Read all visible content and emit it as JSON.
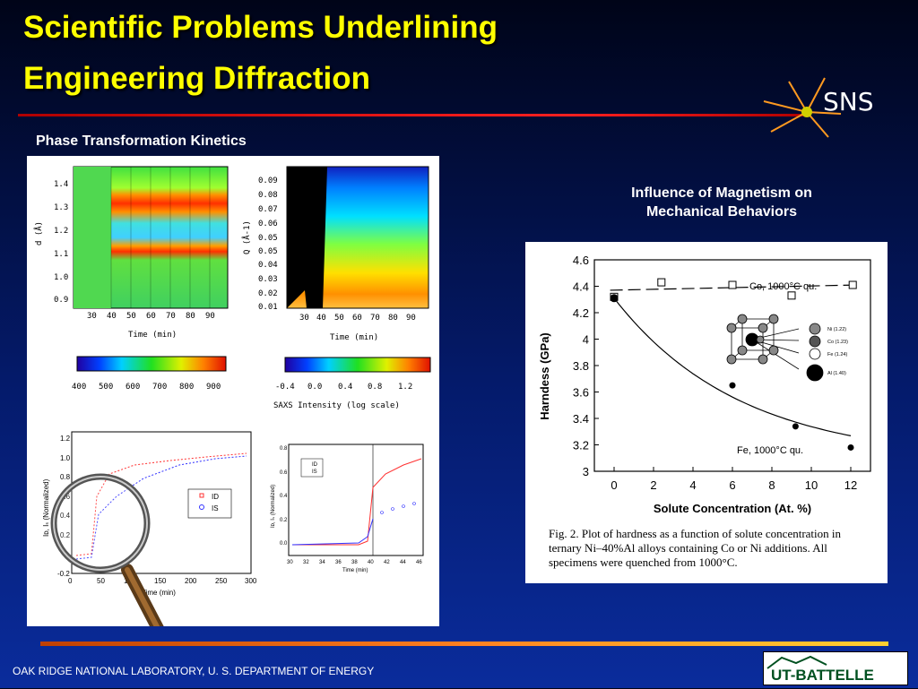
{
  "slide": {
    "title_line1": "Scientific Problems Underlining",
    "title_line2": "Engineering Diffraction",
    "logo_text": "SNS",
    "section_left": "Phase Transformation Kinetics",
    "section_right_line1": "Influence of Magnetism on",
    "section_right_line2": "Mechanical Behaviors",
    "footer": "OAK RIDGE NATIONAL LABORATORY, U. S. DEPARTMENT OF ENERGY",
    "ut_logo": "UT-BATTELLE"
  },
  "left_panel": {
    "diffraction": {
      "ylabel": "d (Å)",
      "xlabel": "Time (min)",
      "yticks": [
        "1.4",
        "1.3",
        "1.2",
        "1.1",
        "1.0",
        "0.9"
      ],
      "xticks": [
        "30",
        "40",
        "50",
        "60",
        "70",
        "80",
        "90"
      ],
      "colorbar_ticks": [
        "400",
        "500",
        "600",
        "700",
        "800",
        "900"
      ]
    },
    "saxs": {
      "ylabel": "Q (Å-1)",
      "xlabel": "Time (min)",
      "yticks": [
        "0.09",
        "0.08",
        "0.07",
        "0.06",
        "0.05",
        "0.05",
        "0.04",
        "0.03",
        "0.02",
        "0.01"
      ],
      "xticks": [
        "30",
        "40",
        "50",
        "60",
        "70",
        "80",
        "90"
      ],
      "colorbar_ticks": [
        "-0.4",
        "0.0",
        "0.4",
        "0.8",
        "1.2"
      ],
      "colorbar_label": "SAXS Intensity (log scale)"
    },
    "kinetics_left": {
      "ylabel": "Iᴅ, Iₛ (Normalized)",
      "xlabel": "Time (min)",
      "yticks": [
        "1.2",
        "1.0",
        "0.8",
        "0.6",
        "0.4",
        "0.2",
        "0",
        "-0.2"
      ],
      "xticks": [
        "0",
        "50",
        "100",
        "150",
        "200",
        "250",
        "300"
      ],
      "legend": [
        "ID",
        "IS"
      ]
    },
    "kinetics_right": {
      "ylabel": "Iᴅ, Iₛ (Normalized)",
      "xlabel": "Time (min)",
      "yticks": [
        "0.8",
        "0.6",
        "0.4",
        "0.2",
        "0.0"
      ],
      "xticks": [
        "30",
        "32",
        "34",
        "36",
        "38",
        "40",
        "42",
        "44",
        "46"
      ],
      "legend": [
        "ID",
        "IS"
      ]
    }
  },
  "chart_data": {
    "type": "scatter",
    "title": "",
    "xlabel": "Solute Concentration (At. %)",
    "ylabel": "Harndess (GPa)",
    "xlim": [
      -1,
      13
    ],
    "ylim": [
      3,
      4.6
    ],
    "xticks": [
      "0",
      "2",
      "4",
      "6",
      "8",
      "10",
      "12"
    ],
    "yticks": [
      "4.6",
      "4.4",
      "4.2",
      "4",
      "3.8",
      "3.6",
      "3.4",
      "3.2",
      "3"
    ],
    "series": [
      {
        "name": "Co, 1000°C qu.",
        "x": [
          0,
          2.4,
          6,
          9,
          12.1
        ],
        "y": [
          4.32,
          4.43,
          4.41,
          4.33,
          4.41
        ]
      },
      {
        "name": "Fe, 1000°C qu.",
        "x": [
          0,
          6,
          9.2,
          12
        ],
        "y": [
          4.31,
          3.65,
          3.34,
          3.18
        ]
      }
    ],
    "legend_atoms": [
      "Ni (1.22)",
      "Co (1.23)",
      "Fe (1.24)",
      "Al (1.40)"
    ],
    "caption": "Fig. 2.    Plot of hardness as a function of solute concentration in ternary Ni–40%Al alloys containing Co or Ni additions. All specimens were quenched from 1000°C."
  }
}
